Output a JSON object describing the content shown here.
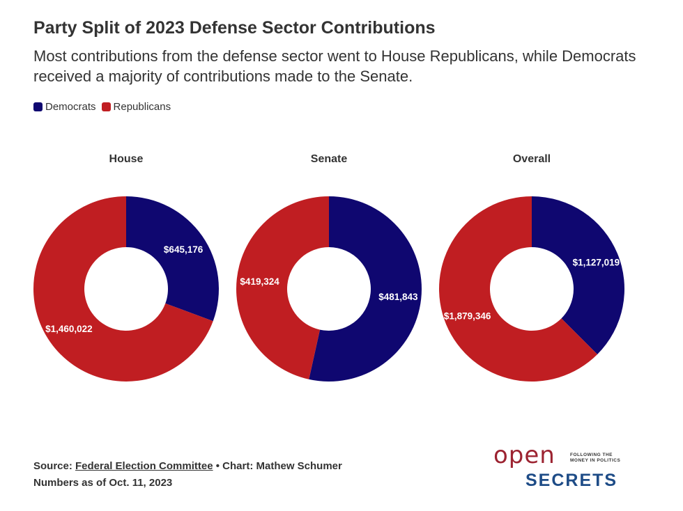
{
  "title": "Party Split of 2023 Defense Sector Contributions",
  "subtitle": "Most contributions from the defense sector went to House Republicans, while Democrats received a majority of contributions made to the Senate.",
  "legend": {
    "democrats": "Democrats",
    "republicans": "Republicans"
  },
  "colors": {
    "democrats": "#0f0770",
    "republicans": "#c01e22"
  },
  "chart_data": [
    {
      "type": "pie",
      "title": "House",
      "labels": [
        "Democrats",
        "Republicans"
      ],
      "values": [
        645176,
        1460022
      ],
      "data_labels": [
        "$645,176",
        "$1,460,022"
      ]
    },
    {
      "type": "pie",
      "title": "Senate",
      "labels": [
        "Democrats",
        "Republicans"
      ],
      "values": [
        481843,
        419324
      ],
      "data_labels": [
        "$481,843",
        "$419,324"
      ]
    },
    {
      "type": "pie",
      "title": "Overall",
      "labels": [
        "Democrats",
        "Republicans"
      ],
      "values": [
        1127019,
        1879346
      ],
      "data_labels": [
        "$1,127,019",
        "$1,879,346"
      ]
    }
  ],
  "footer": {
    "source_prefix": "Source: ",
    "source_link": "Federal Election Committee",
    "chart_credit": " • Chart: Mathew Schumer",
    "as_of": "Numbers as of Oct. 11, 2023"
  },
  "logo": {
    "open": "open",
    "tagline_1": "FOLLOWING THE",
    "tagline_2": "MONEY IN POLITICS",
    "secrets": "SECRETS"
  }
}
